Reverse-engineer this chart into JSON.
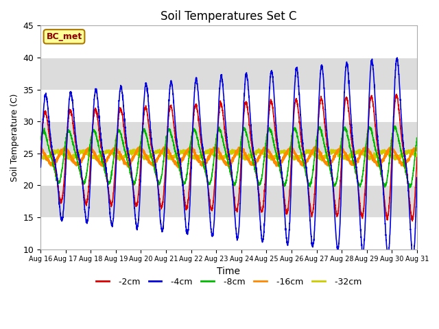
{
  "title": "Soil Temperatures Set C",
  "xlabel": "Time",
  "ylabel": "Soil Temperature (C)",
  "ylim": [
    10,
    45
  ],
  "background_color": "#e8e8e8",
  "plot_bg_color": "#e8e8e8",
  "grid_color": "white",
  "label_box_text": "BC_met",
  "label_box_facecolor": "#ffff99",
  "label_box_edgecolor": "#aa7700",
  "label_box_textcolor": "#8b0000",
  "series": {
    "-2cm": {
      "color": "#dd0000",
      "linewidth": 1.2
    },
    "-4cm": {
      "color": "#0000dd",
      "linewidth": 1.2
    },
    "-8cm": {
      "color": "#00bb00",
      "linewidth": 1.2
    },
    "-16cm": {
      "color": "#ff8800",
      "linewidth": 1.8
    },
    "-32cm": {
      "color": "#cccc00",
      "linewidth": 1.8
    }
  },
  "tick_labels": [
    "Aug 16",
    "Aug 17",
    "Aug 18",
    "Aug 19",
    "Aug 20",
    "Aug 21",
    "Aug 22",
    "Aug 23",
    "Aug 24",
    "Aug 25",
    "Aug 26",
    "Aug 27",
    "Aug 28",
    "Aug 29",
    "Aug 30",
    "Aug 31"
  ],
  "n_points": 3360,
  "depth_params": {
    "-2cm": {
      "mean": 24.5,
      "amp": 8.0,
      "phase": 0.0,
      "amp_trend": 0.08,
      "freq_mult": 1.0,
      "skew": 0.3
    },
    "-4cm": {
      "mean": 24.5,
      "amp": 11.0,
      "phase": -0.15,
      "amp_trend": 0.13,
      "freq_mult": 1.0,
      "skew": 0.35
    },
    "-8cm": {
      "mean": 24.5,
      "amp": 4.5,
      "phase": 0.5,
      "amp_trend": 0.03,
      "freq_mult": 1.0,
      "skew": 0.2
    },
    "-16cm": {
      "mean": 24.5,
      "amp": 1.2,
      "phase": 1.8,
      "amp_trend": 0.0,
      "freq_mult": 1.0,
      "skew": 0.0
    },
    "-32cm": {
      "mean": 24.8,
      "amp": 0.5,
      "phase": 3.5,
      "amp_trend": 0.0,
      "freq_mult": 1.0,
      "skew": 0.0
    }
  }
}
